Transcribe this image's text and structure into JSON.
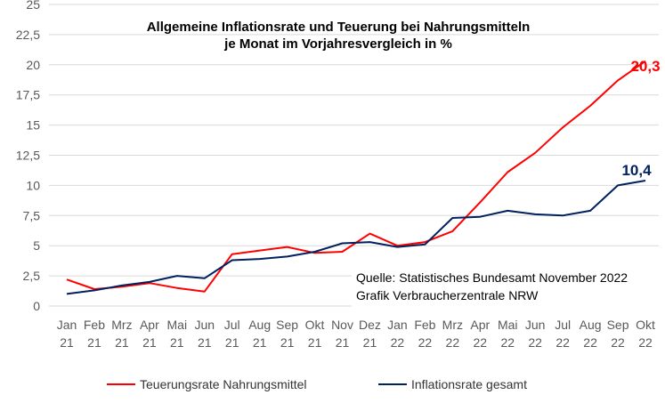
{
  "chart_data": {
    "type": "line",
    "title": "Allgemeine Inflationsrate und Teuerung bei Nahrungsmitteln",
    "subtitle": "je Monat im Vorjahresvergleich in %",
    "categories": [
      [
        "Jan",
        "21"
      ],
      [
        "Feb",
        "21"
      ],
      [
        "Mrz",
        "21"
      ],
      [
        "Apr",
        "21"
      ],
      [
        "Mai",
        "21"
      ],
      [
        "Jun",
        "21"
      ],
      [
        "Jul",
        "21"
      ],
      [
        "Aug",
        "21"
      ],
      [
        "Sep",
        "21"
      ],
      [
        "Okt",
        "21"
      ],
      [
        "Nov",
        "21"
      ],
      [
        "Dez",
        "21"
      ],
      [
        "Jan",
        "22"
      ],
      [
        "Feb",
        "22"
      ],
      [
        "Mrz",
        "22"
      ],
      [
        "Apr",
        "22"
      ],
      [
        "Mai",
        "22"
      ],
      [
        "Jun",
        "22"
      ],
      [
        "Jul",
        "22"
      ],
      [
        "Aug",
        "22"
      ],
      [
        "Sep",
        "22"
      ],
      [
        "Okt",
        "22"
      ]
    ],
    "yticks": [
      "0",
      "2,5",
      "5",
      "7,5",
      "10",
      "12,5",
      "15",
      "17,5",
      "20",
      "22,5",
      "25"
    ],
    "ylim": [
      0,
      25
    ],
    "grid": true,
    "legend_position": "bottom",
    "series": [
      {
        "name": "Teuerungsrate Nahrungsmittel",
        "color": "#FF0000",
        "values": [
          2.2,
          1.4,
          1.6,
          1.9,
          1.5,
          1.2,
          4.3,
          4.6,
          4.9,
          4.4,
          4.5,
          6.0,
          5.0,
          5.3,
          6.2,
          8.6,
          11.1,
          12.7,
          14.8,
          16.6,
          18.7,
          20.3
        ],
        "end_label": "20,3"
      },
      {
        "name": "Inflationsrate gesamt",
        "color": "#002060",
        "values": [
          1.0,
          1.3,
          1.7,
          2.0,
          2.5,
          2.3,
          3.8,
          3.9,
          4.1,
          4.5,
          5.2,
          5.3,
          4.9,
          5.1,
          7.3,
          7.4,
          7.9,
          7.6,
          7.5,
          7.9,
          10.0,
          10.4
        ],
        "end_label": "10,4"
      }
    ],
    "annotations": [
      "Quelle: Statistisches Bundesamt November 2022",
      "Grafik Verbraucherzentrale NRW"
    ]
  }
}
